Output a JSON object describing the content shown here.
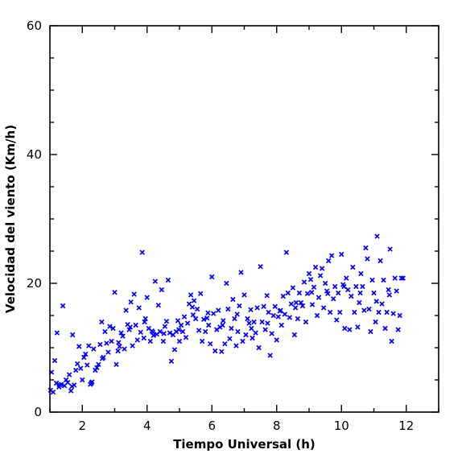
{
  "chart_data": {
    "type": "scatter",
    "title": "",
    "xlabel": "Tiempo Universal (h)",
    "ylabel": "Velocidad del viento (Km/h)",
    "xlim": [
      1,
      13
    ],
    "ylim": [
      0,
      60
    ],
    "x_ticks": [
      2,
      4,
      6,
      8,
      10,
      12
    ],
    "y_ticks": [
      0,
      20,
      40,
      60
    ],
    "grid": false,
    "legend": "none",
    "marker": "x",
    "color": "#0000ff",
    "series": [
      {
        "points": [
          [
            1.02,
            3.4
          ],
          [
            1.05,
            6.2
          ],
          [
            1.1,
            3.1
          ],
          [
            1.15,
            8.0
          ],
          [
            1.2,
            4.5
          ],
          [
            1.22,
            12.3
          ],
          [
            1.28,
            3.9
          ],
          [
            1.35,
            4.3
          ],
          [
            1.4,
            16.5
          ],
          [
            1.45,
            4.1
          ],
          [
            1.5,
            5.0
          ],
          [
            1.55,
            4.6
          ],
          [
            1.6,
            5.8
          ],
          [
            1.65,
            3.3
          ],
          [
            1.7,
            12.0
          ],
          [
            1.75,
            4.2
          ],
          [
            1.8,
            6.5
          ],
          [
            1.85,
            7.5
          ],
          [
            1.9,
            10.2
          ],
          [
            1.95,
            6.8
          ],
          [
            2.0,
            5.0
          ],
          [
            2.05,
            8.5
          ],
          [
            2.1,
            9.0
          ],
          [
            2.15,
            7.3
          ],
          [
            2.2,
            10.3
          ],
          [
            2.25,
            4.3
          ],
          [
            2.3,
            4.7
          ],
          [
            2.35,
            9.8
          ],
          [
            2.4,
            6.5
          ],
          [
            2.45,
            6.9
          ],
          [
            2.5,
            7.4
          ],
          [
            2.55,
            10.5
          ],
          [
            2.6,
            14.0
          ],
          [
            2.65,
            8.5
          ],
          [
            2.7,
            12.5
          ],
          [
            2.75,
            10.7
          ],
          [
            2.8,
            9.3
          ],
          [
            2.85,
            13.3
          ],
          [
            2.9,
            11.0
          ],
          [
            2.95,
            13.0
          ],
          [
            3.0,
            18.6
          ],
          [
            3.05,
            7.4
          ],
          [
            3.1,
            9.5
          ],
          [
            3.15,
            10.2
          ],
          [
            3.2,
            12.3
          ],
          [
            3.25,
            11.8
          ],
          [
            3.3,
            9.8
          ],
          [
            3.35,
            15.8
          ],
          [
            3.4,
            13.6
          ],
          [
            3.45,
            12.8
          ],
          [
            3.5,
            17.1
          ],
          [
            3.55,
            10.3
          ],
          [
            3.6,
            18.3
          ],
          [
            3.65,
            13.5
          ],
          [
            3.7,
            11.2
          ],
          [
            3.75,
            16.2
          ],
          [
            3.8,
            12.4
          ],
          [
            3.85,
            24.8
          ],
          [
            3.9,
            11.5
          ],
          [
            3.95,
            14.5
          ],
          [
            4.0,
            17.8
          ],
          [
            4.05,
            13.0
          ],
          [
            4.1,
            11.0
          ],
          [
            4.15,
            12.6
          ],
          [
            4.2,
            11.9
          ],
          [
            4.25,
            20.3
          ],
          [
            4.3,
            12.1
          ],
          [
            4.35,
            16.6
          ],
          [
            4.4,
            12.5
          ],
          [
            4.45,
            19.0
          ],
          [
            4.5,
            11.0
          ],
          [
            4.55,
            13.3
          ],
          [
            4.6,
            14.1
          ],
          [
            4.65,
            20.5
          ],
          [
            4.7,
            12.3
          ],
          [
            4.75,
            7.9
          ],
          [
            4.8,
            12.0
          ],
          [
            4.85,
            9.7
          ],
          [
            4.9,
            12.5
          ],
          [
            4.95,
            14.2
          ],
          [
            5.0,
            11.0
          ],
          [
            5.05,
            13.5
          ],
          [
            5.1,
            12.5
          ],
          [
            5.15,
            14.8
          ],
          [
            5.2,
            11.6
          ],
          [
            5.25,
            13.8
          ],
          [
            5.3,
            16.8
          ],
          [
            5.35,
            18.2
          ],
          [
            5.4,
            16.3
          ],
          [
            5.45,
            17.3
          ],
          [
            5.5,
            14.5
          ],
          [
            5.55,
            16.0
          ],
          [
            5.6,
            12.7
          ],
          [
            5.65,
            18.4
          ],
          [
            5.7,
            11.0
          ],
          [
            5.75,
            14.4
          ],
          [
            5.8,
            12.5
          ],
          [
            5.85,
            14.6
          ],
          [
            5.9,
            13.5
          ],
          [
            5.95,
            10.6
          ],
          [
            6.0,
            21.0
          ],
          [
            6.05,
            15.3
          ],
          [
            6.1,
            9.5
          ],
          [
            6.15,
            12.8
          ],
          [
            6.2,
            15.8
          ],
          [
            6.25,
            13.2
          ],
          [
            6.3,
            9.4
          ],
          [
            6.35,
            14.2
          ],
          [
            6.4,
            10.6
          ],
          [
            6.45,
            20.0
          ],
          [
            6.5,
            16.0
          ],
          [
            6.55,
            11.4
          ],
          [
            6.6,
            13.0
          ],
          [
            6.65,
            17.5
          ],
          [
            6.7,
            14.5
          ],
          [
            6.75,
            10.3
          ],
          [
            6.8,
            12.5
          ],
          [
            6.85,
            16.5
          ],
          [
            6.9,
            21.7
          ],
          [
            6.95,
            11.0
          ],
          [
            7.0,
            18.2
          ],
          [
            7.05,
            12.0
          ],
          [
            7.1,
            14.5
          ],
          [
            7.15,
            13.8
          ],
          [
            7.2,
            15.9
          ],
          [
            7.25,
            11.5
          ],
          [
            7.3,
            14.0
          ],
          [
            7.35,
            12.3
          ],
          [
            7.4,
            16.2
          ],
          [
            7.45,
            10.0
          ],
          [
            7.5,
            22.6
          ],
          [
            7.55,
            14.0
          ],
          [
            7.6,
            16.4
          ],
          [
            7.65,
            12.8
          ],
          [
            7.7,
            18.1
          ],
          [
            7.75,
            15.5
          ],
          [
            7.8,
            8.8
          ],
          [
            7.85,
            12.2
          ],
          [
            7.9,
            15.0
          ],
          [
            7.95,
            16.4
          ],
          [
            8.0,
            11.2
          ],
          [
            8.05,
            14.8
          ],
          [
            8.1,
            15.7
          ],
          [
            8.15,
            13.5
          ],
          [
            8.2,
            18.0
          ],
          [
            8.25,
            15.2
          ],
          [
            8.3,
            24.8
          ],
          [
            8.35,
            18.5
          ],
          [
            8.4,
            14.7
          ],
          [
            8.45,
            16.8
          ],
          [
            8.5,
            19.3
          ],
          [
            8.55,
            12.0
          ],
          [
            8.6,
            17.0
          ],
          [
            8.65,
            14.5
          ],
          [
            8.7,
            18.5
          ],
          [
            8.75,
            17.0
          ],
          [
            8.8,
            16.5
          ],
          [
            8.85,
            20.2
          ],
          [
            8.9,
            14.0
          ],
          [
            8.95,
            18.4
          ],
          [
            9.0,
            21.5
          ],
          [
            9.05,
            20.6
          ],
          [
            9.1,
            16.7
          ],
          [
            9.15,
            19.4
          ],
          [
            9.2,
            22.5
          ],
          [
            9.25,
            15.0
          ],
          [
            9.3,
            17.8
          ],
          [
            9.35,
            21.2
          ],
          [
            9.4,
            22.3
          ],
          [
            9.45,
            16.2
          ],
          [
            9.5,
            20.0
          ],
          [
            9.55,
            18.8
          ],
          [
            9.6,
            23.5
          ],
          [
            9.65,
            15.5
          ],
          [
            9.7,
            24.3
          ],
          [
            9.75,
            17.6
          ],
          [
            9.8,
            19.5
          ],
          [
            9.85,
            14.3
          ],
          [
            9.9,
            18.5
          ],
          [
            9.95,
            15.5
          ],
          [
            10.0,
            24.5
          ],
          [
            10.05,
            19.8
          ],
          [
            10.1,
            13.0
          ],
          [
            10.15,
            20.8
          ],
          [
            10.2,
            19.0
          ],
          [
            10.25,
            12.8
          ],
          [
            10.3,
            18.0
          ],
          [
            10.35,
            22.5
          ],
          [
            10.4,
            15.5
          ],
          [
            10.45,
            19.5
          ],
          [
            10.5,
            13.2
          ],
          [
            10.55,
            17.0
          ],
          [
            10.6,
            21.5
          ],
          [
            10.65,
            19.5
          ],
          [
            10.7,
            15.8
          ],
          [
            10.75,
            25.5
          ],
          [
            10.8,
            23.8
          ],
          [
            10.85,
            16.0
          ],
          [
            10.9,
            12.5
          ],
          [
            10.95,
            20.5
          ],
          [
            11.0,
            18.5
          ],
          [
            11.05,
            14.0
          ],
          [
            11.1,
            27.3
          ],
          [
            11.15,
            15.5
          ],
          [
            11.2,
            23.5
          ],
          [
            11.25,
            16.8
          ],
          [
            11.3,
            20.5
          ],
          [
            11.35,
            13.0
          ],
          [
            11.4,
            15.5
          ],
          [
            11.45,
            19.0
          ],
          [
            11.5,
            25.3
          ],
          [
            11.55,
            11.0
          ],
          [
            11.6,
            15.3
          ],
          [
            11.65,
            20.8
          ],
          [
            11.7,
            18.8
          ],
          [
            11.75,
            12.8
          ],
          [
            11.8,
            15.0
          ],
          [
            11.85,
            20.8
          ],
          [
            11.9,
            20.8
          ],
          [
            1.3,
            4.2
          ],
          [
            1.68,
            4.0
          ],
          [
            2.28,
            4.5
          ],
          [
            2.62,
            8.3
          ],
          [
            3.12,
            10.8
          ],
          [
            3.48,
            13.2
          ],
          [
            3.92,
            14.0
          ],
          [
            4.18,
            12.4
          ],
          [
            4.52,
            12.2
          ],
          [
            4.98,
            12.8
          ],
          [
            5.42,
            15.1
          ],
          [
            5.88,
            15.4
          ],
          [
            6.33,
            13.5
          ],
          [
            6.78,
            15.2
          ],
          [
            7.22,
            13.0
          ],
          [
            7.72,
            13.8
          ],
          [
            8.12,
            15.8
          ],
          [
            8.58,
            16.2
          ],
          [
            9.08,
            18.6
          ],
          [
            9.58,
            18.4
          ],
          [
            10.08,
            19.5
          ],
          [
            10.58,
            18.5
          ],
          [
            11.08,
            17.2
          ],
          [
            11.48,
            18.2
          ]
        ]
      }
    ]
  }
}
